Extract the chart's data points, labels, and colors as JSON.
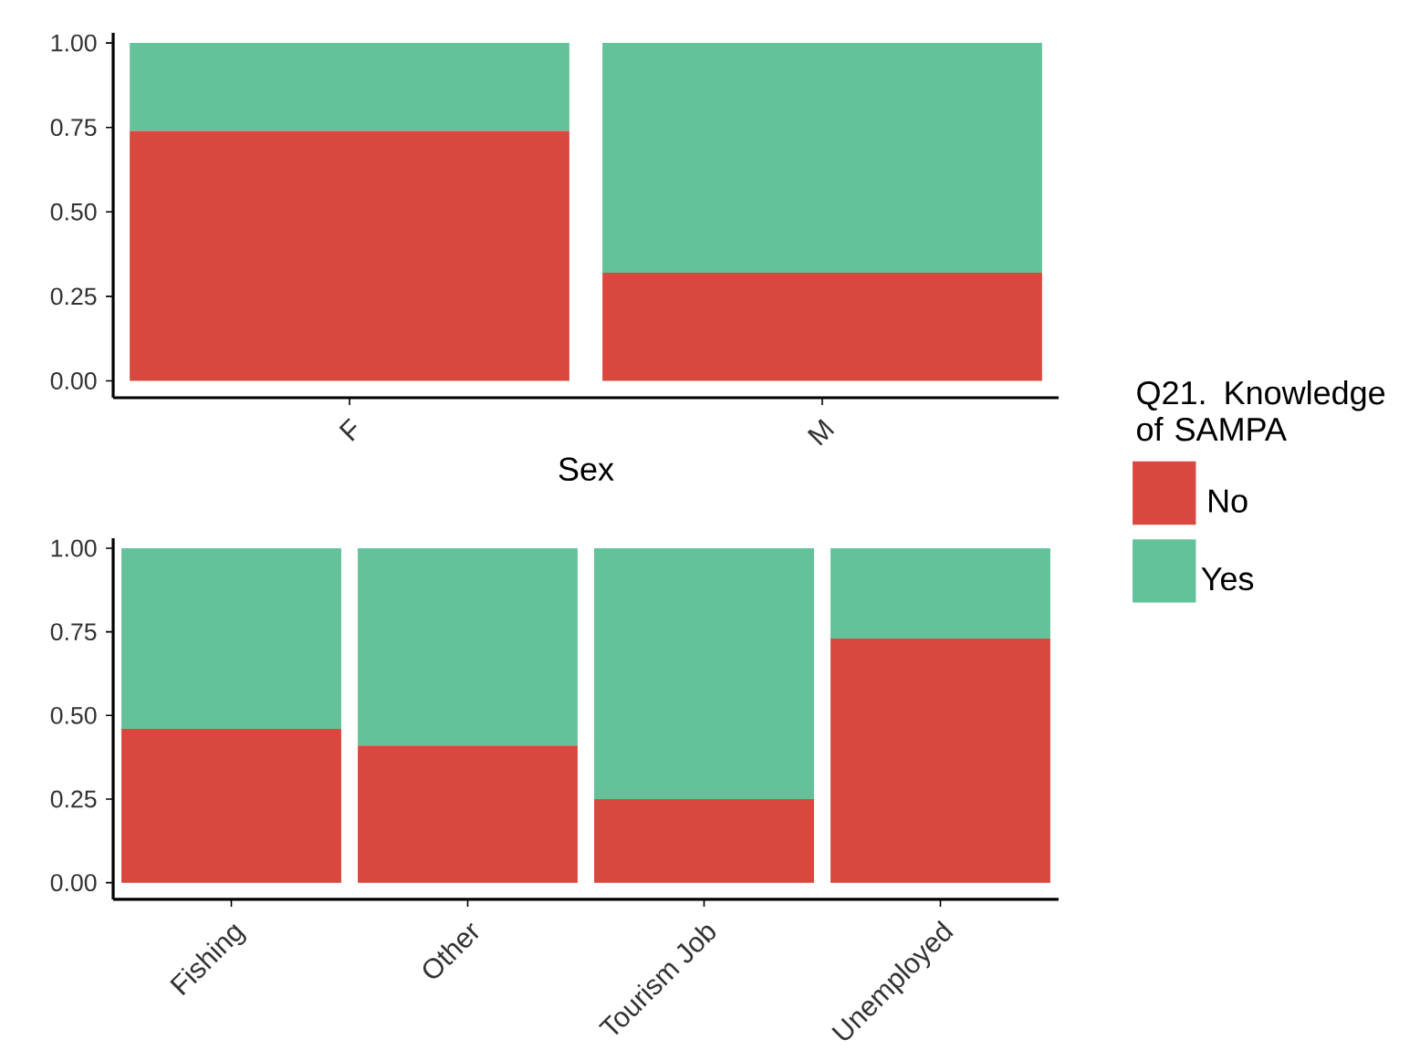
{
  "chart_data": [
    {
      "type": "bar",
      "stacked": true,
      "xlabel": "Sex",
      "categories": [
        "F",
        "M"
      ],
      "legend_title": "Q21. Knowledge of SAMPA",
      "legend": "right",
      "series": [
        {
          "name": "No",
          "color": "#d9483f",
          "values": [
            0.74,
            0.32
          ]
        },
        {
          "name": "Yes",
          "color": "#63c29a",
          "values": [
            0.26,
            0.68
          ]
        }
      ],
      "ylim": [
        -0.05,
        1.03
      ],
      "yticks": [
        {
          "value": 0,
          "label": "0.00"
        },
        {
          "value": 0.25,
          "label": "0.25"
        },
        {
          "value": 0.5,
          "label": "0.50"
        },
        {
          "value": 0.75,
          "label": "0.75"
        },
        {
          "value": 1,
          "label": "1.00"
        }
      ],
      "grid": false
    },
    {
      "type": "bar",
      "stacked": true,
      "categories": [
        "Fishing",
        "Other",
        "Tourism Job",
        "Unemployed"
      ],
      "series": [
        {
          "color": "#d9483f",
          "values": [
            0.46,
            0.41,
            0.25,
            0.73
          ]
        },
        {
          "color": "#63c29a",
          "values": [
            0.54,
            0.59,
            0.75,
            0.27
          ]
        }
      ],
      "ylim": [
        -0.05,
        1.03
      ],
      "yticks": [
        {
          "value": 0,
          "label": "0.00"
        },
        {
          "value": 0.25,
          "label": "0.25"
        },
        {
          "value": 0.5,
          "label": "0.50"
        },
        {
          "value": 0.75,
          "label": "0.75"
        },
        {
          "value": 1,
          "label": "1.00"
        }
      ],
      "grid": false
    }
  ]
}
